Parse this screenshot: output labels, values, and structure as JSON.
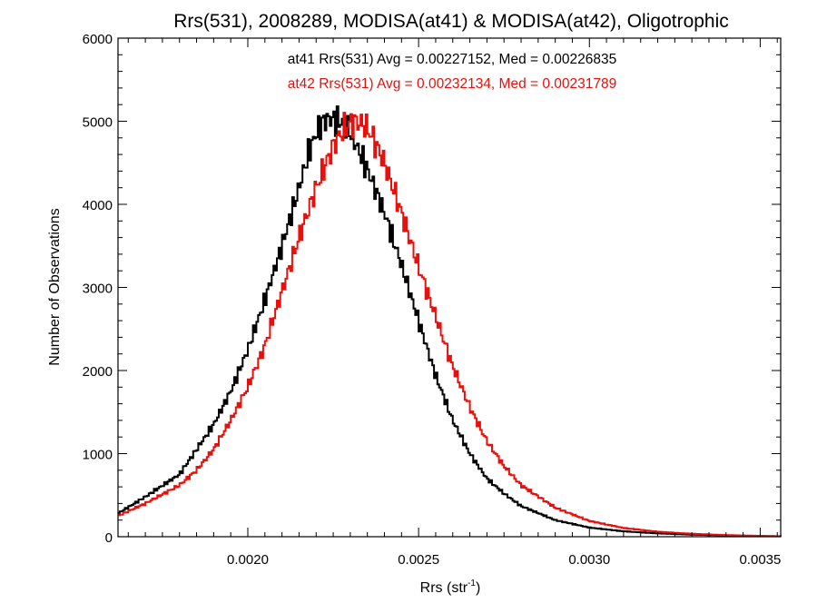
{
  "chart_data": {
    "type": "line",
    "style": "histogram-step",
    "title": "Rrs(531), 2008289, MODISA(at41) & MODISA(at42), Oligotrophic",
    "xlabel": "Rrs (str",
    "xlabel_sup": "-1",
    "xlabel_close": ")",
    "ylabel": "Number of Observations",
    "xlim": [
      0.00162,
      0.00356
    ],
    "ylim": [
      0,
      6000
    ],
    "x_ticks": [
      0.002,
      0.0025,
      0.003,
      0.0035
    ],
    "x_tick_labels": [
      "0.0020",
      "0.0025",
      "0.0030",
      "0.0035"
    ],
    "y_ticks": [
      0,
      1000,
      2000,
      3000,
      4000,
      5000,
      6000
    ],
    "y_tick_labels": [
      "0",
      "1000",
      "2000",
      "3000",
      "4000",
      "5000",
      "6000"
    ],
    "grid": false,
    "annotations": [
      {
        "text": "at41 Rrs(531) Avg = 0.00227152, Med = 0.00226835",
        "color": "#000000"
      },
      {
        "text": "at42 Rrs(531) Avg = 0.00232134, Med = 0.00231789",
        "color": "#e8100c"
      }
    ],
    "series": [
      {
        "color": "#000000",
        "x": [
          0.00162,
          0.0017,
          0.0018,
          0.00185,
          0.0019,
          0.00195,
          0.002,
          0.00205,
          0.0021,
          0.00215,
          0.00218,
          0.0022,
          0.00222,
          0.00224,
          0.00226,
          0.00228,
          0.0023,
          0.00235,
          0.0024,
          0.00245,
          0.0025,
          0.00255,
          0.0026,
          0.00265,
          0.0027,
          0.00275,
          0.0028,
          0.0029,
          0.003,
          0.0031,
          0.0032,
          0.0033,
          0.0034,
          0.0035,
          0.00356
        ],
        "y": [
          280,
          480,
          750,
          1050,
          1350,
          1750,
          2250,
          2850,
          3500,
          4200,
          4650,
          4850,
          5000,
          5030,
          5010,
          4980,
          4870,
          4420,
          3900,
          3270,
          2600,
          1940,
          1400,
          1000,
          700,
          520,
          370,
          200,
          110,
          65,
          40,
          25,
          15,
          8,
          5
        ]
      },
      {
        "color": "#e8100c",
        "x": [
          0.00162,
          0.0017,
          0.0018,
          0.00185,
          0.0019,
          0.00195,
          0.002,
          0.00205,
          0.0021,
          0.00215,
          0.0022,
          0.00225,
          0.00228,
          0.0023,
          0.00232,
          0.00234,
          0.00236,
          0.0024,
          0.00245,
          0.0025,
          0.00255,
          0.0026,
          0.00265,
          0.0027,
          0.00275,
          0.0028,
          0.0029,
          0.003,
          0.0031,
          0.0032,
          0.0033,
          0.0034,
          0.0035,
          0.00356
        ],
        "y": [
          250,
          400,
          620,
          800,
          1050,
          1400,
          1800,
          2300,
          2950,
          3600,
          4200,
          4700,
          4900,
          4980,
          4990,
          4960,
          4850,
          4500,
          3900,
          3250,
          2650,
          2050,
          1560,
          1150,
          850,
          620,
          350,
          190,
          105,
          60,
          35,
          20,
          10,
          6
        ]
      }
    ]
  }
}
